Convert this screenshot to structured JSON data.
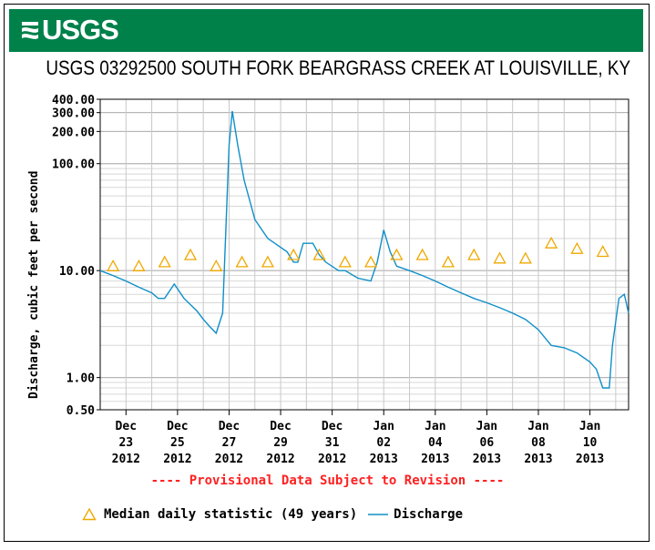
{
  "header": {
    "logo_text": "USGS",
    "brand_color": "#00814a",
    "logo_icon": "usgs-wave-icon"
  },
  "chart_data": {
    "type": "line",
    "title": "USGS 03292500 SOUTH FORK BEARGRASS CREEK AT LOUISVILLE, KY",
    "ylabel": "Discharge, cubic feet per second",
    "xlabel": "",
    "y_scale": "log",
    "ylim": [
      0.5,
      400
    ],
    "y_ticks": [
      "0.50",
      "1.00",
      "10.00",
      "100.00",
      "200.00",
      "300.00",
      "400.00"
    ],
    "y_tick_values": [
      0.5,
      1,
      10,
      100,
      200,
      300,
      400
    ],
    "xlim": [
      "2012-12-22T00:00",
      "2013-01-11T12:00"
    ],
    "x_ticks": [
      {
        "date": "2012-12-23",
        "line1": "Dec",
        "line2": "23",
        "line3": "2012"
      },
      {
        "date": "2012-12-25",
        "line1": "Dec",
        "line2": "25",
        "line3": "2012"
      },
      {
        "date": "2012-12-27",
        "line1": "Dec",
        "line2": "27",
        "line3": "2012"
      },
      {
        "date": "2012-12-29",
        "line1": "Dec",
        "line2": "29",
        "line3": "2012"
      },
      {
        "date": "2012-12-31",
        "line1": "Dec",
        "line2": "31",
        "line3": "2012"
      },
      {
        "date": "2013-01-02",
        "line1": "Jan",
        "line2": "02",
        "line3": "2013"
      },
      {
        "date": "2013-01-04",
        "line1": "Jan",
        "line2": "04",
        "line3": "2013"
      },
      {
        "date": "2013-01-06",
        "line1": "Jan",
        "line2": "06",
        "line3": "2013"
      },
      {
        "date": "2013-01-08",
        "line1": "Jan",
        "line2": "08",
        "line3": "2013"
      },
      {
        "date": "2013-01-10",
        "line1": "Jan",
        "line2": "10",
        "line3": "2013"
      }
    ],
    "grid": true,
    "legend_position": "bottom",
    "series": [
      {
        "name": "Median daily statistic (49 years)",
        "kind": "markers",
        "marker": "triangle-icon",
        "color": "#f0a800",
        "points": [
          {
            "x": "2012-12-22T12:00",
            "y": 11
          },
          {
            "x": "2012-12-23T12:00",
            "y": 11
          },
          {
            "x": "2012-12-24T12:00",
            "y": 12
          },
          {
            "x": "2012-12-25T12:00",
            "y": 14
          },
          {
            "x": "2012-12-26T12:00",
            "y": 11
          },
          {
            "x": "2012-12-27T12:00",
            "y": 12
          },
          {
            "x": "2012-12-28T12:00",
            "y": 12
          },
          {
            "x": "2012-12-29T12:00",
            "y": 14
          },
          {
            "x": "2012-12-30T12:00",
            "y": 14
          },
          {
            "x": "2012-12-31T12:00",
            "y": 12
          },
          {
            "x": "2013-01-01T12:00",
            "y": 12
          },
          {
            "x": "2013-01-02T12:00",
            "y": 14
          },
          {
            "x": "2013-01-03T12:00",
            "y": 14
          },
          {
            "x": "2013-01-04T12:00",
            "y": 12
          },
          {
            "x": "2013-01-05T12:00",
            "y": 14
          },
          {
            "x": "2013-01-06T12:00",
            "y": 13
          },
          {
            "x": "2013-01-07T12:00",
            "y": 13
          },
          {
            "x": "2013-01-08T12:00",
            "y": 18
          },
          {
            "x": "2013-01-09T12:00",
            "y": 16
          },
          {
            "x": "2013-01-10T12:00",
            "y": 15
          }
        ]
      },
      {
        "name": "Discharge",
        "kind": "line",
        "color": "#0f8fc8",
        "points": [
          {
            "x": "2012-12-22T00:00",
            "y": 10
          },
          {
            "x": "2012-12-22T12:00",
            "y": 9
          },
          {
            "x": "2012-12-23T00:00",
            "y": 8
          },
          {
            "x": "2012-12-23T12:00",
            "y": 7
          },
          {
            "x": "2012-12-24T00:00",
            "y": 6.2
          },
          {
            "x": "2012-12-24T06:00",
            "y": 5.5
          },
          {
            "x": "2012-12-24T12:00",
            "y": 5.5
          },
          {
            "x": "2012-12-24T21:00",
            "y": 7.5
          },
          {
            "x": "2012-12-25T06:00",
            "y": 5.5
          },
          {
            "x": "2012-12-25T18:00",
            "y": 4.2
          },
          {
            "x": "2012-12-26T00:00",
            "y": 3.5
          },
          {
            "x": "2012-12-26T06:00",
            "y": 3.0
          },
          {
            "x": "2012-12-26T12:00",
            "y": 2.6
          },
          {
            "x": "2012-12-26T18:00",
            "y": 4
          },
          {
            "x": "2012-12-27T00:00",
            "y": 150
          },
          {
            "x": "2012-12-27T03:00",
            "y": 310
          },
          {
            "x": "2012-12-27T08:00",
            "y": 150
          },
          {
            "x": "2012-12-27T14:00",
            "y": 70
          },
          {
            "x": "2012-12-28T00:00",
            "y": 30
          },
          {
            "x": "2012-12-28T12:00",
            "y": 20
          },
          {
            "x": "2012-12-29T06:00",
            "y": 15
          },
          {
            "x": "2012-12-29T12:00",
            "y": 12
          },
          {
            "x": "2012-12-29T16:00",
            "y": 12
          },
          {
            "x": "2012-12-29T21:00",
            "y": 18
          },
          {
            "x": "2012-12-30T06:00",
            "y": 18
          },
          {
            "x": "2012-12-30T12:00",
            "y": 14
          },
          {
            "x": "2012-12-30T18:00",
            "y": 12
          },
          {
            "x": "2012-12-31T06:00",
            "y": 10
          },
          {
            "x": "2012-12-31T12:00",
            "y": 10
          },
          {
            "x": "2013-01-01T00:00",
            "y": 8.5
          },
          {
            "x": "2013-01-01T12:00",
            "y": 8
          },
          {
            "x": "2013-01-01T18:00",
            "y": 12
          },
          {
            "x": "2013-01-02T00:00",
            "y": 24
          },
          {
            "x": "2013-01-02T06:00",
            "y": 15
          },
          {
            "x": "2013-01-02T12:00",
            "y": 11
          },
          {
            "x": "2013-01-03T00:00",
            "y": 10
          },
          {
            "x": "2013-01-03T12:00",
            "y": 9
          },
          {
            "x": "2013-01-04T00:00",
            "y": 8
          },
          {
            "x": "2013-01-04T12:00",
            "y": 7
          },
          {
            "x": "2013-01-05T00:00",
            "y": 6.2
          },
          {
            "x": "2013-01-05T12:00",
            "y": 5.5
          },
          {
            "x": "2013-01-06T00:00",
            "y": 5
          },
          {
            "x": "2013-01-06T12:00",
            "y": 4.5
          },
          {
            "x": "2013-01-07T00:00",
            "y": 4
          },
          {
            "x": "2013-01-07T12:00",
            "y": 3.5
          },
          {
            "x": "2013-01-08T00:00",
            "y": 2.8
          },
          {
            "x": "2013-01-08T12:00",
            "y": 2
          },
          {
            "x": "2013-01-09T00:00",
            "y": 1.9
          },
          {
            "x": "2013-01-09T12:00",
            "y": 1.7
          },
          {
            "x": "2013-01-10T00:00",
            "y": 1.4
          },
          {
            "x": "2013-01-10T06:00",
            "y": 1.2
          },
          {
            "x": "2013-01-10T12:00",
            "y": 0.8
          },
          {
            "x": "2013-01-10T18:00",
            "y": 0.8
          },
          {
            "x": "2013-01-10T21:00",
            "y": 2
          },
          {
            "x": "2013-01-11T03:00",
            "y": 5.5
          },
          {
            "x": "2013-01-11T08:00",
            "y": 6
          },
          {
            "x": "2013-01-11T12:00",
            "y": 4
          }
        ]
      }
    ],
    "annotation": "---- Provisional Data Subject to Revision ----"
  }
}
